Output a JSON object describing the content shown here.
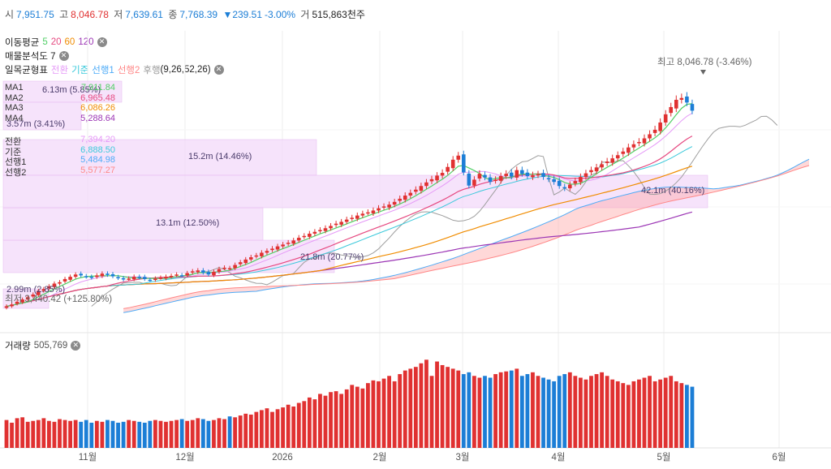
{
  "header": {
    "open_label": "시",
    "open_value": "7,951.75",
    "high_label": "고",
    "high_value": "8,046.78",
    "low_label": "저",
    "low_value": "7,639.61",
    "close_label": "종",
    "close_value": "7,768.39",
    "change_value": "▼239.51",
    "change_pct": "-3.00%",
    "volume_label": "거",
    "volume_value": "515,863천주"
  },
  "indicators": {
    "ma_title": "이동평균",
    "ma_periods": [
      "5",
      "20",
      "60",
      "120"
    ],
    "volume_profile": "매물분석도 7",
    "ichimoku_title": "일목균형표",
    "ichimoku_parts": [
      "전환",
      "기준",
      "선행1",
      "선행2",
      "후행"
    ],
    "ichimoku_params": "(9,26,52,26)"
  },
  "legend": {
    "ma": [
      {
        "name": "MA1",
        "value": "7,911.84",
        "color": "#51cf66"
      },
      {
        "name": "MA2",
        "value": "6,965.48",
        "color": "#e64980"
      },
      {
        "name": "MA3",
        "value": "6,086.26",
        "color": "#f08c00"
      },
      {
        "name": "MA4",
        "value": "5,288.64",
        "color": "#9c36b5"
      }
    ],
    "ichimoku": [
      {
        "name": "전환",
        "value": "7,394.20",
        "color": "#e599f7"
      },
      {
        "name": "기준",
        "value": "6,888.50",
        "color": "#3bc9db"
      },
      {
        "name": "선행1",
        "value": "5,484.98",
        "color": "#4dabf7"
      },
      {
        "name": "선행2",
        "value": "5,577.27",
        "color": "#ff8787"
      }
    ]
  },
  "volume_panel": {
    "title": "거래량",
    "value": "505,769"
  },
  "colors": {
    "up": "#e03131",
    "down": "#1c7ed6",
    "grid": "#eeeeee",
    "profile": "#f3d9fa"
  },
  "chart_data": {
    "type": "candlestick",
    "x_ticks": [
      "11월",
      "12월",
      "2026",
      "2월",
      "3월",
      "4월",
      "5월",
      "6월"
    ],
    "ylim": [
      3200,
      8600
    ],
    "high_annotation": {
      "label": "최고",
      "value": "8,046.78",
      "pct": "(-3.46%)"
    },
    "low_annotation": {
      "label": "최저",
      "value": "3,440.42",
      "pct": "(+125.80%)"
    },
    "volume_profile": [
      {
        "label": "2.99m (2.85%)",
        "price": 3450
      },
      {
        "label": "21.8m (20.77%)",
        "price": 4050
      },
      {
        "label": "13.1m (12.50%)",
        "price": 4550
      },
      {
        "label": "15.2m (14.46%)",
        "price": 5450
      },
      {
        "label": "42.1m (40.16%)",
        "price": 6350
      },
      {
        "label": "6.13m (5.85%)",
        "price": 7550
      },
      {
        "label": "3.57m (3.41%)",
        "price": 6850
      }
    ],
    "closes": [
      3460,
      3500,
      3560,
      3610,
      3660,
      3720,
      3800,
      3840,
      3900,
      3960,
      3990,
      4060,
      4110,
      4160,
      4140,
      4110,
      4090,
      4140,
      4180,
      4150,
      4120,
      4080,
      4050,
      4070,
      4110,
      4090,
      4060,
      4040,
      4070,
      4090,
      4110,
      4130,
      4160,
      4140,
      4190,
      4230,
      4250,
      4200,
      4160,
      4220,
      4280,
      4310,
      4300,
      4370,
      4430,
      4490,
      4540,
      4580,
      4640,
      4680,
      4730,
      4780,
      4820,
      4860,
      4910,
      4970,
      5010,
      5060,
      5100,
      5140,
      5180,
      5230,
      5280,
      5320,
      5370,
      5410,
      5460,
      5500,
      5530,
      5570,
      5620,
      5660,
      5700,
      5760,
      5830,
      5900,
      5960,
      6030,
      6110,
      6190,
      6260,
      6340,
      6400,
      6530,
      6690,
      6780,
      6410,
      6120,
      6250,
      6380,
      6300,
      6200,
      6250,
      6330,
      6380,
      6320,
      6460,
      6380,
      6330,
      6350,
      6370,
      6310,
      6260,
      6200,
      6110,
      6060,
      6140,
      6220,
      6310,
      6390,
      6460,
      6520,
      6590,
      6650,
      6720,
      6790,
      6870,
      6960,
      7030,
      7080,
      7160,
      7250,
      7350,
      7510,
      7690,
      7850,
      8010,
      8050,
      7950,
      7770
    ],
    "volume": [
      31,
      28,
      33,
      34,
      29,
      30,
      31,
      33,
      30,
      29,
      32,
      31,
      30,
      31,
      29,
      31,
      28,
      30,
      29,
      31,
      30,
      28,
      29,
      31,
      30,
      29,
      28,
      30,
      31,
      30,
      29,
      30,
      31,
      32,
      30,
      31,
      33,
      32,
      30,
      31,
      33,
      32,
      35,
      34,
      36,
      38,
      37,
      40,
      42,
      44,
      40,
      43,
      45,
      48,
      46,
      50,
      52,
      56,
      54,
      60,
      58,
      62,
      63,
      60,
      65,
      70,
      68,
      66,
      72,
      75,
      74,
      77,
      80,
      74,
      82,
      86,
      88,
      90,
      94,
      98,
      80,
      96,
      92,
      90,
      88,
      86,
      82,
      84,
      80,
      78,
      80,
      78,
      82,
      84,
      85,
      86,
      88,
      80,
      82,
      84,
      80,
      78,
      76,
      74,
      80,
      82,
      84,
      80,
      78,
      76,
      80,
      82,
      84,
      80,
      76,
      74,
      72,
      70,
      74,
      76,
      78,
      80,
      74,
      76,
      78,
      80,
      74,
      72,
      70,
      68
    ]
  }
}
